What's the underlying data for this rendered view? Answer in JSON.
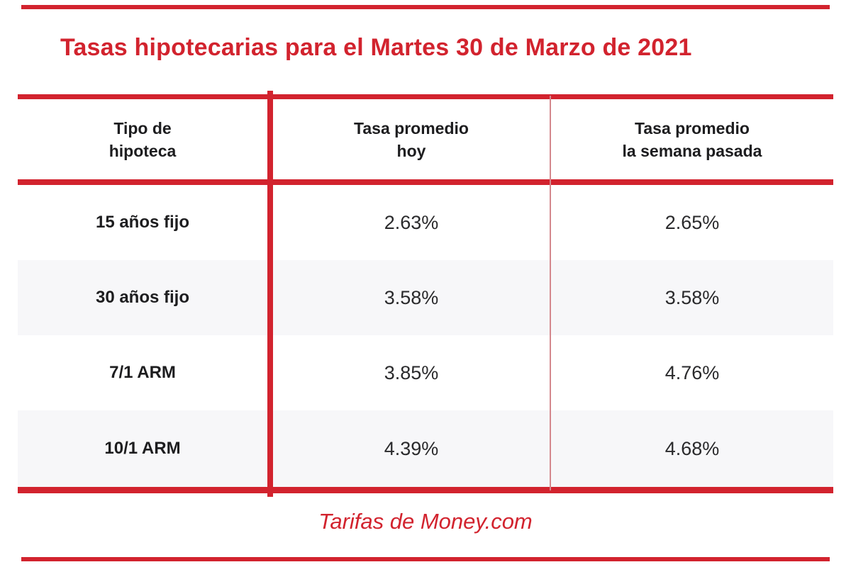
{
  "header": {
    "title": "Tasas hipotecarias para el Martes 30 de Marzo de 2021"
  },
  "table": {
    "columns": [
      {
        "line1": "Tipo de",
        "line2": "hipoteca"
      },
      {
        "line1": "Tasa promedio",
        "line2": "hoy"
      },
      {
        "line1": "Tasa promedio",
        "line2": "la semana pasada"
      }
    ],
    "rows": [
      {
        "type": "15 años fijo",
        "today": "2.63%",
        "last_week": "2.65%"
      },
      {
        "type": "30 años fijo",
        "today": "3.58%",
        "last_week": "3.58%"
      },
      {
        "type": "7/1 ARM",
        "today": "3.85%",
        "last_week": "4.76%"
      },
      {
        "type": "10/1 ARM",
        "today": "4.39%",
        "last_week": "4.68%"
      }
    ]
  },
  "footer": {
    "source": "Tarifas de Money.com"
  },
  "colors": {
    "accent_red": "#d2232e",
    "divider_light_red": "#d4888d",
    "row_alt_bg": "#f7f7f9",
    "text_dark": "#1d1d1f"
  },
  "chart_data": {
    "type": "table",
    "title": "Tasas hipotecarias para el Martes 30 de Marzo de 2021",
    "columns": [
      "Tipo de hipoteca",
      "Tasa promedio hoy",
      "Tasa promedio la semana pasada"
    ],
    "rows": [
      [
        "15 años fijo",
        "2.63%",
        "2.65%"
      ],
      [
        "30 años fijo",
        "3.58%",
        "3.58%"
      ],
      [
        "7/1 ARM",
        "3.85%",
        "4.76%"
      ],
      [
        "10/1 ARM",
        "4.39%",
        "4.68%"
      ]
    ],
    "values_today_pct": [
      2.63,
      3.58,
      3.85,
      4.39
    ],
    "values_last_week_pct": [
      2.65,
      3.58,
      4.76,
      4.68
    ],
    "source": "Tarifas de Money.com"
  }
}
